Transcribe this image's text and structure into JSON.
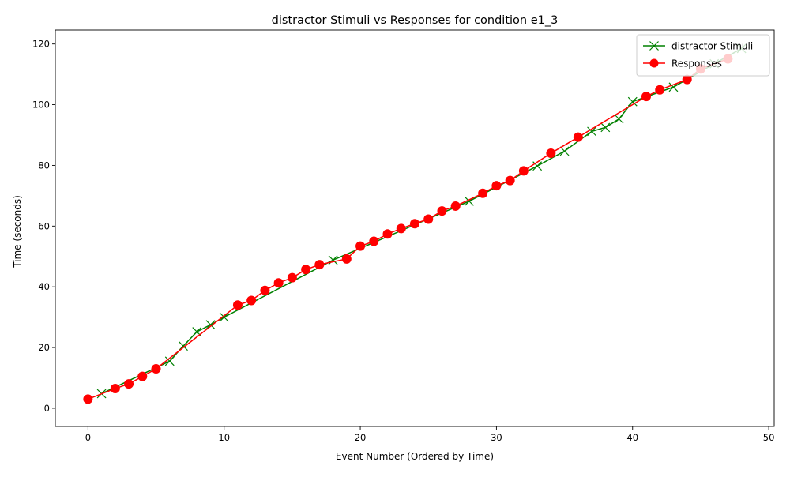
{
  "chart_data": {
    "type": "line",
    "title": "distractor Stimuli vs Responses for condition e1_3",
    "xlabel": "Event Number (Ordered by Time)",
    "ylabel": "Time (seconds)",
    "xlim": [
      -2.4,
      50.4
    ],
    "ylim": [
      -6.0,
      124.6
    ],
    "xticks": [
      0,
      10,
      20,
      30,
      40,
      50
    ],
    "yticks": [
      0,
      20,
      40,
      60,
      80,
      100,
      120
    ],
    "grid": false,
    "legend_position": "top-right",
    "series": [
      {
        "name": "distractor Stimuli",
        "color": "#008000",
        "marker": "x",
        "points": [
          [
            1,
            4.8
          ],
          [
            6,
            15.5
          ],
          [
            7,
            20.5
          ],
          [
            8,
            25.2
          ],
          [
            9,
            27.5
          ],
          [
            10,
            30.0
          ],
          [
            18,
            48.8
          ],
          [
            28,
            68.2
          ],
          [
            33,
            79.8
          ],
          [
            35,
            84.7
          ],
          [
            37,
            91.2
          ],
          [
            38,
            92.5
          ],
          [
            39,
            95.3
          ],
          [
            40,
            101.0
          ],
          [
            43,
            105.8
          ],
          [
            46,
            113.5
          ],
          [
            48,
            118.5
          ]
        ]
      },
      {
        "name": "Responses",
        "color": "#ff0000",
        "marker": "o",
        "points": [
          [
            0,
            3.0
          ],
          [
            2,
            6.5
          ],
          [
            3,
            8.0
          ],
          [
            4,
            10.5
          ],
          [
            5,
            13.0
          ],
          [
            11,
            34.0
          ],
          [
            12,
            35.5
          ],
          [
            13,
            38.8
          ],
          [
            14,
            41.3
          ],
          [
            15,
            43.0
          ],
          [
            16,
            45.7
          ],
          [
            17,
            47.3
          ],
          [
            19,
            49.2
          ],
          [
            20,
            53.4
          ],
          [
            21,
            55.0
          ],
          [
            22,
            57.4
          ],
          [
            23,
            59.2
          ],
          [
            24,
            60.8
          ],
          [
            25,
            62.3
          ],
          [
            26,
            65.0
          ],
          [
            27,
            66.6
          ],
          [
            29,
            70.8
          ],
          [
            30,
            73.3
          ],
          [
            31,
            75.0
          ],
          [
            32,
            78.2
          ],
          [
            34,
            84.0
          ],
          [
            36,
            89.3
          ],
          [
            41,
            102.7
          ],
          [
            42,
            104.9
          ],
          [
            44,
            108.3
          ],
          [
            45,
            111.8
          ],
          [
            47,
            115.1
          ]
        ]
      }
    ]
  }
}
